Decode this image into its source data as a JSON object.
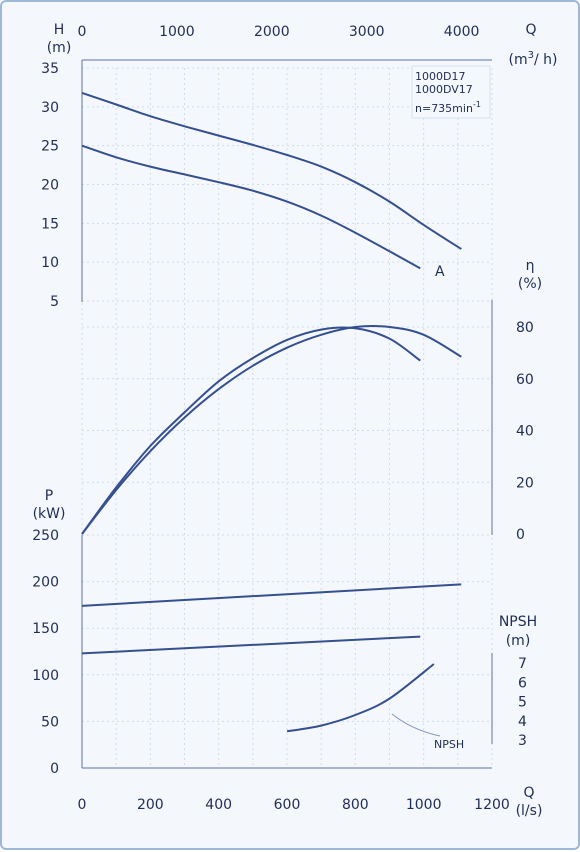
{
  "chart_data": {
    "type": "line",
    "pump_label": {
      "line1": "1000D17",
      "line2": "1000DV17",
      "speed_base": "n=735min",
      "speed_exp": "-1"
    },
    "x_axis": {
      "label": "Q",
      "unit": "(l/s)",
      "range": [
        0,
        1200
      ],
      "ticks": [
        "0",
        "200",
        "400",
        "600",
        "800",
        "1000",
        "1200"
      ]
    },
    "x2_axis": {
      "label": "Q",
      "unit_base": "(m",
      "unit_exp": "3",
      "unit_tail": "/ h)",
      "range": [
        0,
        4320
      ],
      "ticks": [
        "0",
        "1000",
        "2000",
        "3000",
        "4000"
      ],
      "tick_values": [
        0,
        1000,
        2000,
        3000,
        4000
      ]
    },
    "head_panel": {
      "y_label": "H",
      "y_unit": "(m)",
      "ylim": [
        5,
        35
      ],
      "ticks": [
        "35",
        "30",
        "25",
        "20",
        "15",
        "10",
        "5"
      ],
      "tick_values": [
        35,
        30,
        25,
        20,
        15,
        10,
        5
      ],
      "annotation": "A",
      "series": [
        {
          "x": [
            0,
            100,
            200,
            300,
            400,
            500,
            600,
            700,
            800,
            900,
            1000,
            1110
          ],
          "y": [
            31.8,
            30.3,
            28.8,
            27.5,
            26.3,
            25.1,
            23.8,
            22.3,
            20.3,
            17.8,
            14.8,
            11.7
          ]
        },
        {
          "x": [
            0,
            100,
            200,
            300,
            400,
            500,
            600,
            700,
            800,
            900,
            990
          ],
          "y": [
            25,
            23.5,
            22.3,
            21.3,
            20.3,
            19.2,
            17.8,
            16.0,
            13.8,
            11.4,
            9.2
          ]
        }
      ]
    },
    "efficiency_panel": {
      "y_label": "η",
      "y_unit": "(%)",
      "ylim": [
        0,
        90
      ],
      "ticks": [
        "80",
        "60",
        "40",
        "20",
        "0"
      ],
      "tick_values": [
        80,
        60,
        40,
        20,
        0
      ],
      "series": [
        {
          "x": [
            0,
            100,
            200,
            300,
            400,
            500,
            600,
            700,
            800,
            900,
            1000,
            1110
          ],
          "y": [
            0,
            17,
            32,
            45,
            56,
            65,
            72,
            77,
            80,
            80,
            77,
            68.5
          ]
        },
        {
          "x": [
            0,
            100,
            200,
            300,
            400,
            500,
            600,
            700,
            800,
            900,
            990
          ],
          "y": [
            0,
            18,
            34,
            47,
            59,
            68,
            75,
            79,
            79.5,
            75.5,
            67
          ]
        }
      ]
    },
    "power_panel": {
      "y_label": "P",
      "y_unit": "(kW)",
      "ylim": [
        0,
        250
      ],
      "ticks": [
        "250",
        "200",
        "150",
        "100",
        "50",
        "0"
      ],
      "tick_values": [
        250,
        200,
        150,
        100,
        50,
        0
      ],
      "series": [
        {
          "x": [
            0,
            1110
          ],
          "y": [
            174,
            197
          ]
        },
        {
          "x": [
            0,
            990
          ],
          "y": [
            123,
            141
          ]
        }
      ]
    },
    "npsh_panel": {
      "y_label": "NPSH",
      "y_unit": "(m)",
      "ylim": [
        3,
        7
      ],
      "ticks": [
        "7",
        "6",
        "5",
        "4",
        "3"
      ],
      "tick_values": [
        7,
        6,
        5,
        4,
        3
      ],
      "annotation": "NPSH",
      "series": [
        {
          "x": [
            600,
            700,
            800,
            900,
            1030
          ],
          "y": [
            3.45,
            3.75,
            4.3,
            5.15,
            6.95
          ]
        }
      ]
    },
    "grid": true
  }
}
